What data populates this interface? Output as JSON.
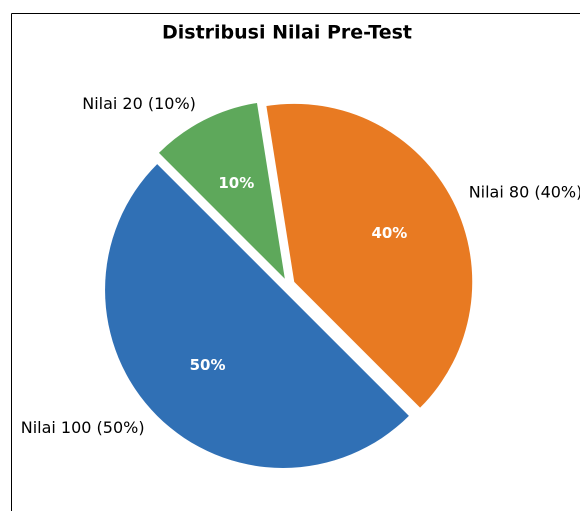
{
  "chart_data": {
    "type": "pie",
    "title": "Distribusi Nilai Pre-Test",
    "categories": [
      "Nilai 80 (40%)",
      "Nilai 20 (10%)",
      "Nilai 100 (50%)"
    ],
    "values": [
      40,
      10,
      50
    ],
    "value_labels": [
      "40%",
      "10%",
      "50%"
    ],
    "colors": [
      "#e87a22",
      "#5ea85b",
      "#3070b5"
    ],
    "startangle": -45
  }
}
